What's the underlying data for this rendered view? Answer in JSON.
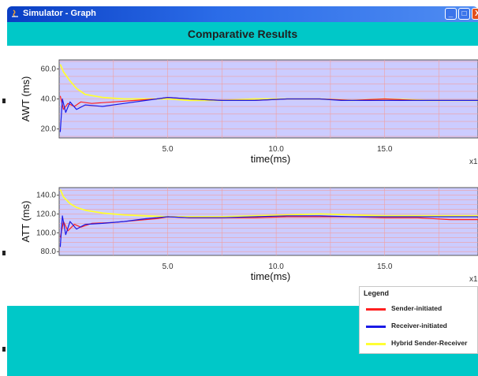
{
  "window": {
    "title": "Simulator - Graph",
    "controls": {
      "minimize": "_",
      "maximize": "□",
      "close": "X"
    }
  },
  "header": {
    "title": "Comparative Results"
  },
  "colors": {
    "titlebar": "#2b6ce8",
    "teal": "#00c8c8",
    "plot_bg": "#ccccff",
    "grid": "#f0a0a0",
    "sender": "#ff2020",
    "receiver": "#1a1ae6",
    "hybrid": "#ffff33"
  },
  "chart_data": [
    {
      "type": "line",
      "ylabel": "AWT (ms)",
      "xlabel": "time(ms)",
      "x_exponent_label": "x1",
      "ylim": [
        14,
        66
      ],
      "xlim": [
        0,
        19.3
      ],
      "yticks": [
        "20.0",
        "40.0",
        "60.0"
      ],
      "xticks": [
        "5.0",
        "10.0",
        "15.0"
      ],
      "grid": true,
      "series": [
        {
          "name": "Sender-initiated",
          "color": "#ff2020",
          "x": [
            0.05,
            0.2,
            0.4,
            0.7,
            1.0,
            1.5,
            2.5,
            3.5,
            4.5,
            5.0,
            6.0,
            7.5,
            9.0,
            10.5,
            12.0,
            13.5,
            15.0,
            16.5,
            17.5,
            19.3
          ],
          "y": [
            42,
            33,
            37,
            35,
            38,
            37,
            38,
            39,
            40,
            41,
            40,
            39,
            39,
            40,
            40,
            39,
            40,
            39,
            39,
            39
          ]
        },
        {
          "name": "Receiver-initiated",
          "color": "#1a1ae6",
          "x": [
            0.05,
            0.15,
            0.3,
            0.5,
            0.8,
            1.2,
            2.0,
            3.0,
            4.0,
            5.0,
            6.0,
            7.5,
            9.0,
            10.5,
            12.0,
            13.0,
            15.0,
            17.0,
            19.3
          ],
          "y": [
            18,
            40,
            31,
            38,
            33,
            36,
            35,
            37,
            39,
            41,
            40,
            39,
            39,
            40,
            40,
            39,
            39,
            39,
            39
          ]
        },
        {
          "name": "Hybrid Sender-Receiver",
          "color": "#ffff33",
          "x": [
            0.05,
            0.2,
            0.5,
            0.8,
            1.2,
            2.0,
            3.0,
            4.0,
            5.0,
            6.0,
            7.5,
            9.0,
            10.5,
            12.0,
            13.5,
            15.0,
            17.0,
            19.3
          ],
          "y": [
            63,
            58,
            52,
            47,
            43,
            41,
            40,
            40,
            40,
            39,
            39,
            40,
            40,
            40,
            39,
            40,
            39,
            39
          ]
        }
      ]
    },
    {
      "type": "line",
      "ylabel": "ATT (ms)",
      "xlabel": "time(ms)",
      "x_exponent_label": "x1",
      "ylim": [
        76,
        148
      ],
      "xlim": [
        0,
        19.3
      ],
      "yticks": [
        "80.0",
        "100.0",
        "120.0",
        "140.0"
      ],
      "xticks": [
        "5.0",
        "10.0",
        "15.0"
      ],
      "grid": true,
      "series": [
        {
          "name": "Sender-initiated",
          "color": "#ff2020",
          "x": [
            0.05,
            0.2,
            0.4,
            0.7,
            1.0,
            1.5,
            2.5,
            3.5,
            4.5,
            5.0,
            6.0,
            7.5,
            9.0,
            10.5,
            12.0,
            13.5,
            15.0,
            16.5,
            18.0,
            19.3
          ],
          "y": [
            95,
            112,
            102,
            109,
            106,
            110,
            111,
            113,
            115,
            117,
            116,
            116,
            116,
            117,
            117,
            117,
            116,
            116,
            114,
            114
          ]
        },
        {
          "name": "Receiver-initiated",
          "color": "#1a1ae6",
          "x": [
            0.05,
            0.15,
            0.3,
            0.5,
            0.8,
            1.2,
            2.0,
            3.0,
            4.0,
            5.0,
            6.0,
            7.5,
            9.0,
            10.5,
            12.0,
            13.5,
            15.0,
            17.0,
            19.3
          ],
          "y": [
            85,
            118,
            98,
            112,
            104,
            109,
            110,
            112,
            115,
            117,
            116,
            116,
            117,
            118,
            118,
            117,
            117,
            117,
            117
          ]
        },
        {
          "name": "Hybrid Sender-Receiver",
          "color": "#ffff33",
          "x": [
            0.05,
            0.2,
            0.5,
            0.8,
            1.2,
            2.0,
            3.0,
            4.0,
            5.0,
            6.0,
            7.5,
            9.0,
            10.5,
            12.0,
            13.5,
            15.0,
            17.0,
            19.3
          ],
          "y": [
            146,
            138,
            131,
            127,
            124,
            121,
            119,
            118,
            117,
            117,
            117,
            118,
            119,
            120,
            119,
            118,
            118,
            118
          ]
        }
      ]
    }
  ],
  "legend": {
    "title": "Legend",
    "items": [
      {
        "label": "Sender-initiated",
        "color": "#ff2020"
      },
      {
        "label": "Receiver-initiated",
        "color": "#1a1ae6"
      },
      {
        "label": "Hybrid Sender-Receiver",
        "color": "#ffff33"
      }
    ]
  }
}
